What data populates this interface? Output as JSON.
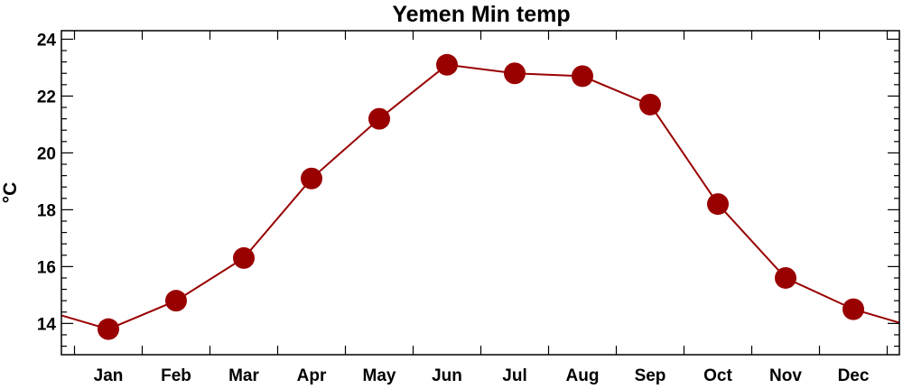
{
  "chart_data": {
    "type": "line",
    "title": "Yemen Min temp",
    "xlabel": "",
    "ylabel": "°C",
    "categories": [
      "Jan",
      "Feb",
      "Mar",
      "Apr",
      "May",
      "Jun",
      "Jul",
      "Aug",
      "Sep",
      "Oct",
      "Nov",
      "Dec"
    ],
    "series": [
      {
        "values": [
          13.8,
          14.8,
          16.3,
          19.1,
          21.2,
          23.1,
          22.8,
          22.7,
          21.7,
          18.2,
          15.6,
          14.5
        ]
      }
    ],
    "ylim": [
      12.9,
      24.3
    ],
    "yticks": [
      14,
      16,
      18,
      20,
      22,
      24
    ],
    "line_wraps_around_year": true,
    "grid": false,
    "legend": "none",
    "colors": {
      "series": "#990000",
      "axes": "#000000",
      "background": "#ffffff"
    }
  }
}
